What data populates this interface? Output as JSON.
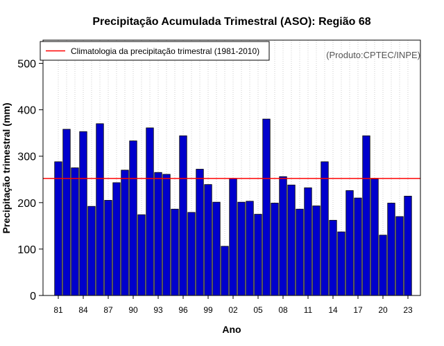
{
  "chart_data": {
    "type": "bar",
    "title": "Precipitação Acumulada Trimestral (ASO): Região 68",
    "xlabel": "Ano",
    "ylabel": "Precipitação trimestral (mm)",
    "ylim": [
      0,
      550
    ],
    "yticks": [
      0,
      100,
      200,
      300,
      400,
      500
    ],
    "grid": "vertical dotted",
    "credit": "(Produto:CPTEC/INPE)",
    "legend": {
      "label": "Climatologia da precipitação trimestral (1981-2010)",
      "position": "top-left"
    },
    "climatology": 252,
    "colors": {
      "bar": "#0000cc",
      "climatology": "#ff0000",
      "grid": "#cccccc"
    },
    "categories": [
      "1981",
      "1982",
      "1983",
      "1984",
      "1985",
      "1986",
      "1987",
      "1988",
      "1989",
      "1990",
      "1991",
      "1992",
      "1993",
      "1994",
      "1995",
      "1996",
      "1997",
      "1998",
      "1999",
      "2000",
      "2001",
      "2002",
      "2003",
      "2004",
      "2005",
      "2006",
      "2007",
      "2008",
      "2009",
      "2010",
      "2011",
      "2012",
      "2013",
      "2014",
      "2015",
      "2016",
      "2017",
      "2018",
      "2019",
      "2020",
      "2021",
      "2022",
      "2023"
    ],
    "values": [
      288,
      358,
      275,
      353,
      192,
      370,
      205,
      243,
      270,
      333,
      174,
      361,
      265,
      261,
      186,
      344,
      179,
      272,
      239,
      201,
      106,
      252,
      201,
      203,
      175,
      380,
      199,
      256,
      238,
      186,
      232,
      193,
      288,
      162,
      137,
      226,
      210,
      344,
      251,
      130,
      199,
      170,
      214
    ],
    "xtick_labels": [
      "81",
      "84",
      "87",
      "90",
      "93",
      "96",
      "99",
      "02",
      "05",
      "08",
      "11",
      "14",
      "17",
      "20",
      "23"
    ]
  }
}
